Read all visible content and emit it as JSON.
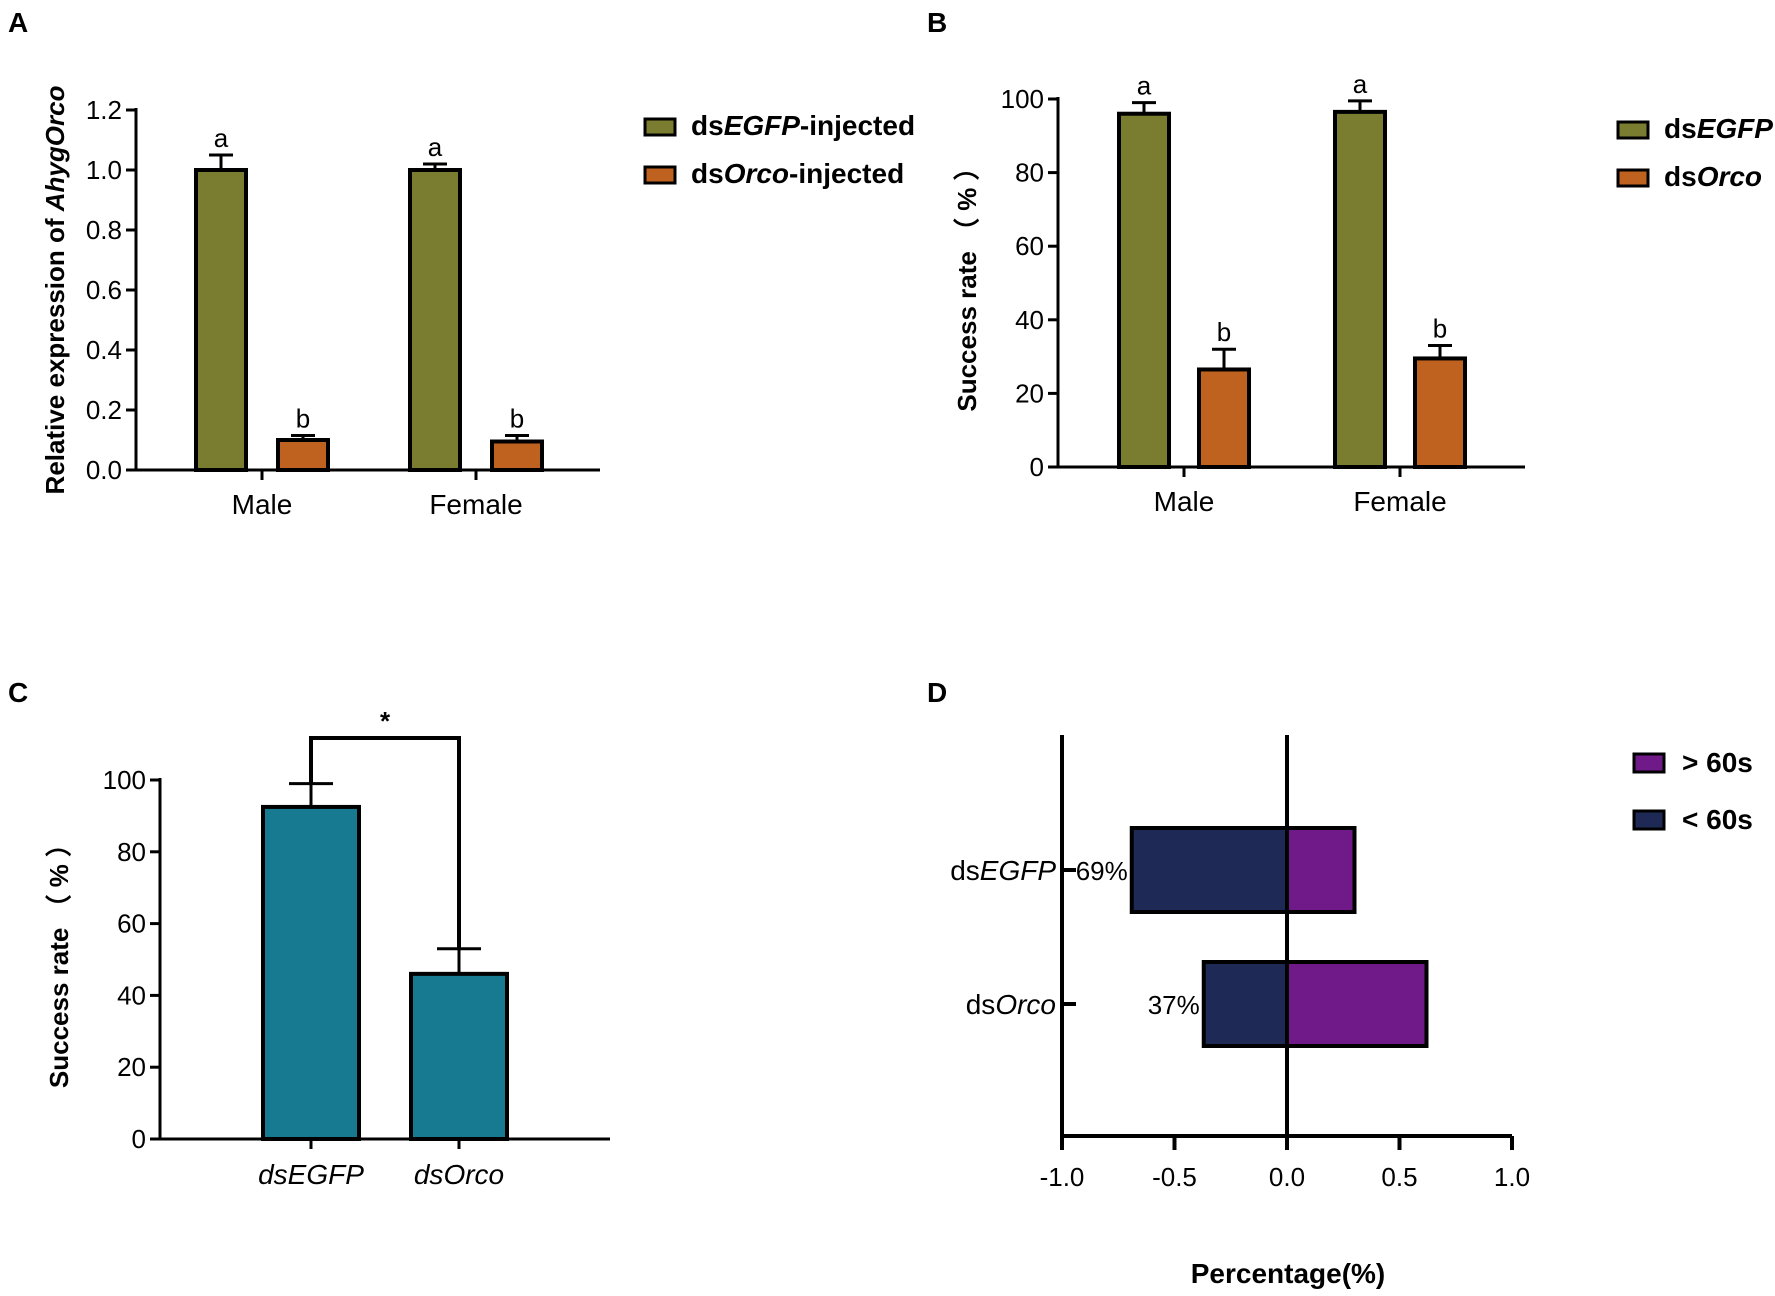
{
  "colors": {
    "egfp_olive": "#7a7d2f",
    "orco_orange": "#c0621f",
    "teal": "#177a91",
    "navy": "#1e2a55",
    "purple": "#6f1a88",
    "axis": "#000000"
  },
  "chart_data": [
    {
      "panel": "A",
      "type": "bar",
      "ylabel_prefix": "Relative expression of ",
      "ylabel_italic": "AhygOrco",
      "categories": [
        "Male",
        "Female"
      ],
      "ylim": [
        0,
        1.2
      ],
      "yticks": [
        "0.0",
        "0.2",
        "0.4",
        "0.6",
        "0.8",
        "1.0",
        "1.2"
      ],
      "series": [
        {
          "name_prefix": "ds",
          "name_italic": "EGFP",
          "name_suffix": "-injected",
          "color": "#7a7d2f",
          "values": [
            1.0,
            1.0
          ],
          "errors": [
            0.05,
            0.02
          ],
          "letters": [
            "a",
            "a"
          ]
        },
        {
          "name_prefix": "ds",
          "name_italic": "Orco",
          "name_suffix": "-injected",
          "color": "#c0621f",
          "values": [
            0.1,
            0.095
          ],
          "errors": [
            0.015,
            0.02
          ],
          "letters": [
            "b",
            "b"
          ]
        }
      ]
    },
    {
      "panel": "B",
      "type": "bar",
      "ylabel": "Success rate （ % ）",
      "categories": [
        "Male",
        "Female"
      ],
      "ylim": [
        0,
        100
      ],
      "yticks": [
        "0",
        "20",
        "40",
        "60",
        "80",
        "100"
      ],
      "series": [
        {
          "name_prefix": "ds",
          "name_italic": "EGFP",
          "name_suffix": "",
          "color": "#7a7d2f",
          "values": [
            96,
            96.5
          ],
          "errors": [
            3,
            3
          ],
          "letters": [
            "a",
            "a"
          ]
        },
        {
          "name_prefix": "ds",
          "name_italic": "Orco",
          "name_suffix": "",
          "color": "#c0621f",
          "values": [
            26.5,
            29.5
          ],
          "errors": [
            5.5,
            3.5
          ],
          "letters": [
            "b",
            "b"
          ]
        }
      ]
    },
    {
      "panel": "C",
      "type": "bar",
      "ylabel": "Success rate （ % ）",
      "categories": [
        "dsEGFP",
        "dsOrco"
      ],
      "ylim": [
        0,
        100
      ],
      "yticks": [
        "0",
        "20",
        "40",
        "60",
        "80",
        "100"
      ],
      "values": [
        92.5,
        46
      ],
      "errors": [
        6.5,
        7
      ],
      "color": "#177a91",
      "significance": "*"
    },
    {
      "panel": "D",
      "type": "bar",
      "orientation": "horizontal-diverging",
      "xlabel": "Percentage(%)",
      "xlim": [
        -1.0,
        1.0
      ],
      "xticks": [
        "-1.0",
        "-0.5",
        "0.0",
        "0.5",
        "1.0"
      ],
      "categories": [
        {
          "prefix": "ds",
          "italic": "EGFP"
        },
        {
          "prefix": "ds",
          "italic": "Orco"
        }
      ],
      "series": [
        {
          "name": "< 60s",
          "color": "#1e2a55",
          "values": [
            -0.69,
            -0.37
          ],
          "labels": [
            "69%",
            "37%"
          ]
        },
        {
          "name": "> 60s",
          "color": "#6f1a88",
          "values": [
            0.3,
            0.62
          ]
        }
      ],
      "legend": [
        "> 60s",
        "< 60s"
      ]
    }
  ]
}
